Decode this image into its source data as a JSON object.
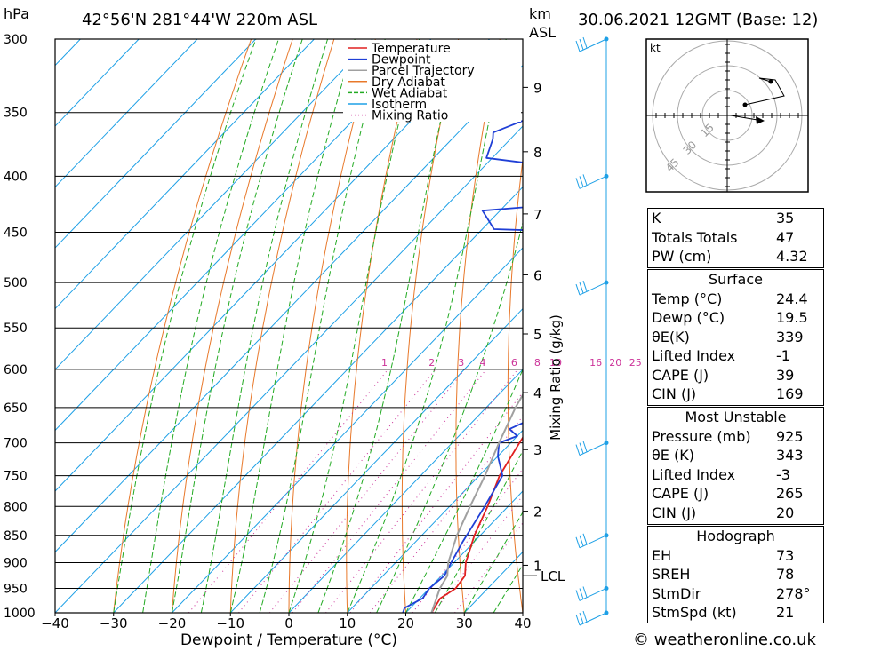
{
  "header": {
    "hpa_label": "hPa",
    "location": "42°56'N  281°44'W  220m  ASL",
    "km_label": "km",
    "asl_label": "ASL",
    "datetime": "30.06.2021  12GMT  (Base: 12)"
  },
  "footer": {
    "credit": "© weatheronline.co.uk"
  },
  "chart_data": {
    "type": "line",
    "title": "42°56'N  281°44'W  220m  ASL",
    "xlabel": "Dewpoint / Temperature (°C)",
    "ylabel": "hPa",
    "xlim": [
      -40,
      40
    ],
    "ylim": [
      1000,
      300
    ],
    "x_ticks": [
      -40,
      -30,
      -20,
      -10,
      0,
      10,
      20,
      30,
      40
    ],
    "pressure_levels": [
      300,
      350,
      400,
      450,
      500,
      550,
      600,
      650,
      700,
      750,
      800,
      850,
      900,
      950,
      1000
    ],
    "km_ticks": [
      {
        "label": "1",
        "p": 905
      },
      {
        "label": "2",
        "p": 808
      },
      {
        "label": "3",
        "p": 710
      },
      {
        "label": "4",
        "p": 630
      },
      {
        "label": "5",
        "p": 557
      },
      {
        "label": "6",
        "p": 492
      },
      {
        "label": "7",
        "p": 433
      },
      {
        "label": "8",
        "p": 380
      },
      {
        "label": "9",
        "p": 332
      }
    ],
    "lcl": {
      "label": "LCL",
      "p": 925
    },
    "mixing_ratio_axis_label": "Mixing Ratio (g/kg)",
    "mixing_ratios": [
      "1",
      "2",
      "3",
      "4",
      "6",
      "8",
      "10",
      "16",
      "20",
      "25"
    ],
    "legend": [
      {
        "name": "Temperature",
        "color": "#e02020"
      },
      {
        "name": "Dewpoint",
        "color": "#1f3fd6"
      },
      {
        "name": "Parcel Trajectory",
        "color": "#a0a0a0"
      },
      {
        "name": "Dry Adiabat",
        "color": "#e8782a"
      },
      {
        "name": "Wet Adiabat",
        "color": "#22aa22"
      },
      {
        "name": "Isotherm",
        "color": "#1ea0e6"
      },
      {
        "name": "Mixing Ratio",
        "color": "#cc3399"
      }
    ],
    "series": [
      {
        "name": "Temperature",
        "points": [
          [
            24.4,
            1000
          ],
          [
            23.5,
            970
          ],
          [
            24.5,
            950
          ],
          [
            24.0,
            925
          ],
          [
            22.0,
            900
          ],
          [
            19.0,
            850
          ],
          [
            16.5,
            800
          ],
          [
            13.5,
            750
          ],
          [
            11.5,
            700
          ],
          [
            9.5,
            650
          ],
          [
            9.0,
            625
          ],
          [
            7.5,
            600
          ],
          [
            4.5,
            550
          ],
          [
            0.5,
            500
          ],
          [
            -4.0,
            460
          ],
          [
            -5.5,
            450
          ],
          [
            -8.0,
            430
          ],
          [
            -10.0,
            410
          ],
          [
            -13.0,
            400
          ],
          [
            -11.0,
            385
          ],
          [
            -13.0,
            375
          ],
          [
            -16.0,
            365
          ],
          [
            -19.0,
            350
          ],
          [
            -22.0,
            330
          ],
          [
            -26.0,
            315
          ],
          [
            -29.0,
            300
          ]
        ]
      },
      {
        "name": "Dewpoint",
        "points": [
          [
            19.5,
            1000
          ],
          [
            19.0,
            990
          ],
          [
            20.5,
            970
          ],
          [
            20.0,
            950
          ],
          [
            20.5,
            925
          ],
          [
            19.5,
            900
          ],
          [
            18.0,
            860
          ],
          [
            16.0,
            800
          ],
          [
            14.0,
            750
          ],
          [
            10.0,
            720
          ],
          [
            8.0,
            700
          ],
          [
            10.0,
            690
          ],
          [
            7.5,
            680
          ],
          [
            9.0,
            670
          ],
          [
            7.5,
            660
          ],
          [
            10.0,
            650
          ],
          [
            8.0,
            640
          ],
          [
            6.0,
            600
          ],
          [
            5.5,
            570
          ],
          [
            1.0,
            560
          ],
          [
            -4.5,
            555
          ],
          [
            -0.5,
            550
          ],
          [
            -1.5,
            530
          ],
          [
            -4.5,
            515
          ],
          [
            -6.0,
            505
          ],
          [
            -5.5,
            500
          ],
          [
            -8.0,
            490
          ],
          [
            -6.0,
            485
          ],
          [
            -11.0,
            470
          ],
          [
            -8.5,
            465
          ],
          [
            -10.5,
            450
          ],
          [
            -28.0,
            447
          ],
          [
            -33.0,
            430
          ],
          [
            -20.0,
            424
          ],
          [
            -18.0,
            405
          ],
          [
            -26.0,
            393
          ],
          [
            -41.0,
            385
          ],
          [
            -43.0,
            370
          ],
          [
            -44.0,
            365
          ],
          [
            -38.0,
            348
          ],
          [
            -42.0,
            330
          ],
          [
            -43.0,
            320
          ],
          [
            -40.0,
            310
          ],
          [
            -40.0,
            305
          ],
          [
            -42.0,
            300
          ]
        ]
      },
      {
        "name": "Parcel Trajectory",
        "points": [
          [
            24.4,
            1000
          ],
          [
            21.8,
            950
          ],
          [
            21.0,
            925
          ],
          [
            19.0,
            900
          ],
          [
            16.0,
            850
          ],
          [
            13.5,
            800
          ],
          [
            11.0,
            750
          ],
          [
            8.0,
            700
          ],
          [
            5.0,
            650
          ],
          [
            2.5,
            600
          ],
          [
            -1.0,
            550
          ],
          [
            -5.0,
            500
          ],
          [
            -10.0,
            450
          ],
          [
            -15.0,
            400
          ],
          [
            -21.0,
            350
          ],
          [
            -29.0,
            300
          ]
        ]
      }
    ]
  },
  "hodograph": {
    "unit": "kt",
    "ring_labels": [
      "15",
      "30",
      "45"
    ]
  },
  "indices": {
    "general": [
      {
        "label": "K",
        "value": "35"
      },
      {
        "label": "Totals Totals",
        "value": "47"
      },
      {
        "label": "PW (cm)",
        "value": "4.32"
      }
    ],
    "surface": {
      "title": "Surface",
      "rows": [
        {
          "label": "Temp (°C)",
          "value": "24.4"
        },
        {
          "label": "Dewp (°C)",
          "value": "19.5"
        },
        {
          "label": "θE(K)",
          "value": "339"
        },
        {
          "label": "Lifted Index",
          "value": "-1"
        },
        {
          "label": "CAPE (J)",
          "value": "39"
        },
        {
          "label": "CIN (J)",
          "value": "169"
        }
      ]
    },
    "most_unstable": {
      "title": "Most Unstable",
      "rows": [
        {
          "label": "Pressure (mb)",
          "value": "925"
        },
        {
          "label": "θE (K)",
          "value": "343"
        },
        {
          "label": "Lifted Index",
          "value": "-3"
        },
        {
          "label": "CAPE (J)",
          "value": "265"
        },
        {
          "label": "CIN (J)",
          "value": "20"
        }
      ]
    },
    "hodograph_box": {
      "title": "Hodograph",
      "rows": [
        {
          "label": "EH",
          "value": "73"
        },
        {
          "label": "SREH",
          "value": "78"
        },
        {
          "label": "StmDir",
          "value": "278°"
        },
        {
          "label": "StmSpd (kt)",
          "value": "21"
        }
      ]
    }
  },
  "colors": {
    "temperature": "#e02020",
    "dewpoint": "#1f3fd6",
    "parcel": "#a0a0a0",
    "dry_adiabat": "#e8782a",
    "wet_adiabat": "#22aa22",
    "isotherm": "#1ea0e6",
    "mixing_ratio": "#cc3399",
    "wind": "#1ea0e6"
  }
}
